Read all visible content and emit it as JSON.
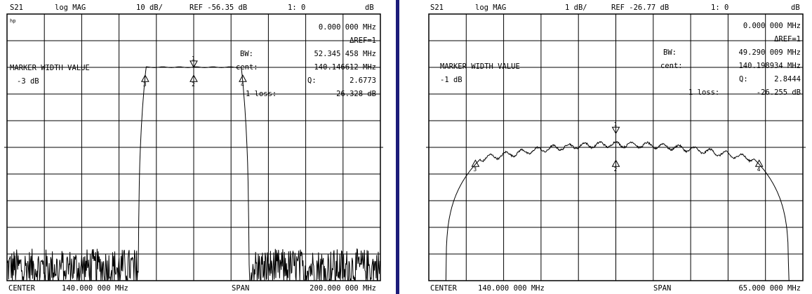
{
  "colors": {
    "trace": "#000000",
    "grid": "#000000",
    "divider": "#1c1c7a",
    "background": "#ffffff"
  },
  "panels": [
    {
      "id": "left",
      "header": {
        "param": "S21",
        "format": "log MAG",
        "scale": "10 dB/",
        "ref": "REF -56.35 dB",
        "marker": "1: 0",
        "unit": "dB"
      },
      "hp_logo": "hp",
      "readout": {
        "marker_freq": "0.000 000 MHz",
        "delta_ref": "ΔREF=1",
        "bw_label": "BW:",
        "bw_value": "52.345 458 MHz",
        "cent_label": "cent:",
        "cent_value": "140.146612 MHz",
        "q_label": "Q:",
        "q_value": "2.6773",
        "loss_label": "1 loss:",
        "loss_value": "-26.328 dB"
      },
      "marker_width_label": "MARKER WIDTH VALUE",
      "marker_width_value": "-3 dB",
      "footer": {
        "center_label": "CENTER",
        "center_value": "140.000 000 MHz",
        "span_label": "SPAN",
        "span_value": "200.000 000 MHz"
      },
      "marker_labels": [
        "1",
        "2",
        "3",
        "4"
      ],
      "chart_data": {
        "type": "line",
        "xlabel": "",
        "ylabel": "",
        "x_range_mhz": [
          40,
          240
        ],
        "ref_level_db": -56.35,
        "scale_db_per_div": 10,
        "divisions": {
          "x": 10,
          "y": 10
        },
        "grid": true,
        "passband": {
          "start_mhz": 113.5,
          "stop_mhz": 166.5,
          "level_db": -26.3
        },
        "noise_floor_db": -102,
        "markers": [
          {
            "label": "1",
            "x_mhz": 140.0,
            "y_db": -26.33
          },
          {
            "label": "2",
            "x_mhz": 140.0,
            "y_db": -29.3
          },
          {
            "label": "3",
            "x_mhz": 114.0,
            "y_db": -29.3
          },
          {
            "label": "4",
            "x_mhz": 166.3,
            "y_db": -29.3
          }
        ]
      }
    },
    {
      "id": "right",
      "header": {
        "param": "S21",
        "format": "log MAG",
        "scale": "1 dB/",
        "ref": "REF -26.77 dB",
        "marker": "1: 0",
        "unit": "dB"
      },
      "readout": {
        "marker_freq": "0.000 000 MHz",
        "delta_ref": "ΔREF=1",
        "bw_label": "BW:",
        "bw_value": "49.290 009 MHz",
        "cent_label": "cent:",
        "cent_value": "140.198934 MHz",
        "q_label": "Q:",
        "q_value": "2.8444",
        "loss_label": "1 loss:",
        "loss_value": "-26.255 dB"
      },
      "marker_width_label": "MARKER WIDTH VALUE",
      "marker_width_value": "-1 dB",
      "footer": {
        "center_label": "CENTER",
        "center_value": "140.000 000 MHz",
        "span_label": "SPAN",
        "span_value": "65.000 000 MHz"
      },
      "marker_labels": [
        "1",
        "2",
        "3",
        "4"
      ],
      "chart_data": {
        "type": "line",
        "xlabel": "",
        "ylabel": "",
        "x_range_mhz": [
          107.5,
          172.5
        ],
        "ref_level_db": -26.77,
        "scale_db_per_div": 1,
        "divisions": {
          "x": 10,
          "y": 10
        },
        "grid": true,
        "passband": {
          "start_mhz": 110.5,
          "stop_mhz": 170.0,
          "level_db": -26.4
        },
        "markers": [
          {
            "label": "1",
            "x_mhz": 140.0,
            "y_db": -26.25
          },
          {
            "label": "2",
            "x_mhz": 140.0,
            "y_db": -27.25
          },
          {
            "label": "3",
            "x_mhz": 115.6,
            "y_db": -27.25
          },
          {
            "label": "4",
            "x_mhz": 164.9,
            "y_db": -27.25
          }
        ]
      }
    }
  ]
}
